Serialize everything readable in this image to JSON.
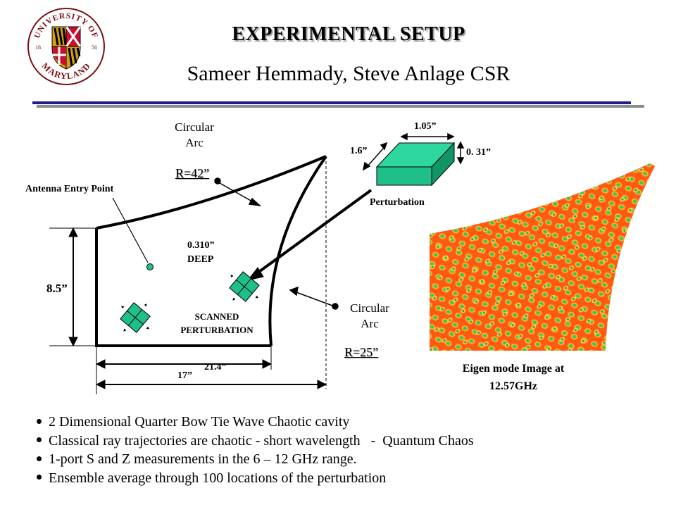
{
  "header": {
    "title": "EXPERIMENTAL SETUP",
    "subtitle": "Sameer Hemmady, Steve Anlage CSR"
  },
  "logo": {
    "text_top": "UNIVERSITY OF",
    "text_bottom": "MARYLAND",
    "year_left": "18",
    "year_right": "56"
  },
  "diagram": {
    "arc_top_label": "Circular\nArc",
    "arc_top_radius": "R=42”",
    "antenna_label": "Antenna Entry Point",
    "depth_label": "0.310”\nDEEP",
    "scanned_label": "SCANNED\nPERTURBATION",
    "arc_right_label": "Circular\nArc",
    "arc_right_radius": "R=25”",
    "height_label": "8.5”",
    "width_inner_label": "17”",
    "width_outer_label": "21.4”",
    "perturbation_label": "Perturbation",
    "dim_top": "1.05”",
    "dim_left": "1.6”",
    "dim_right": "0. 31”"
  },
  "eigen": {
    "caption": "Eigen mode Image at\n12.57GHz"
  },
  "bullets": [
    "2 Dimensional Quarter Bow Tie Wave Chaotic cavity",
    "Classical ray trajectories are chaotic - short wavelength   -  Quantum Chaos",
    "1-port S and Z measurements in the 6 – 12 GHz range.",
    "Ensemble average through 100 locations of the perturbation"
  ],
  "colors": {
    "rule": "#1c1c8c",
    "perturbation": "#1fbf8a",
    "eigen_bg": "#ff5a14",
    "eigen_spot": "#ffd21e",
    "eigen_core": "#2ec86a"
  }
}
